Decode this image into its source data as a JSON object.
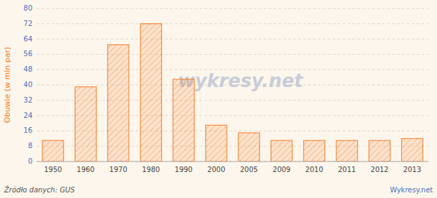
{
  "chart_data": {
    "type": "bar",
    "y_label": "Obuwie (w mln par)",
    "categories": [
      "1950",
      "1960",
      "1970",
      "1980",
      "1990",
      "2000",
      "2005",
      "2009",
      "2010",
      "2011",
      "2012",
      "2013"
    ],
    "values": [
      11,
      39,
      61,
      72,
      43,
      19,
      15,
      11,
      11,
      11,
      11,
      12
    ],
    "color": "#f47920",
    "ylim": [
      0,
      80
    ],
    "yticks": [
      0,
      8,
      16,
      24,
      32,
      40,
      48,
      56,
      64,
      72,
      80
    ],
    "grid": true,
    "annotations": [
      "wykresy.net",
      "Źródło danych:  GUS",
      "Wykresy.net"
    ]
  }
}
